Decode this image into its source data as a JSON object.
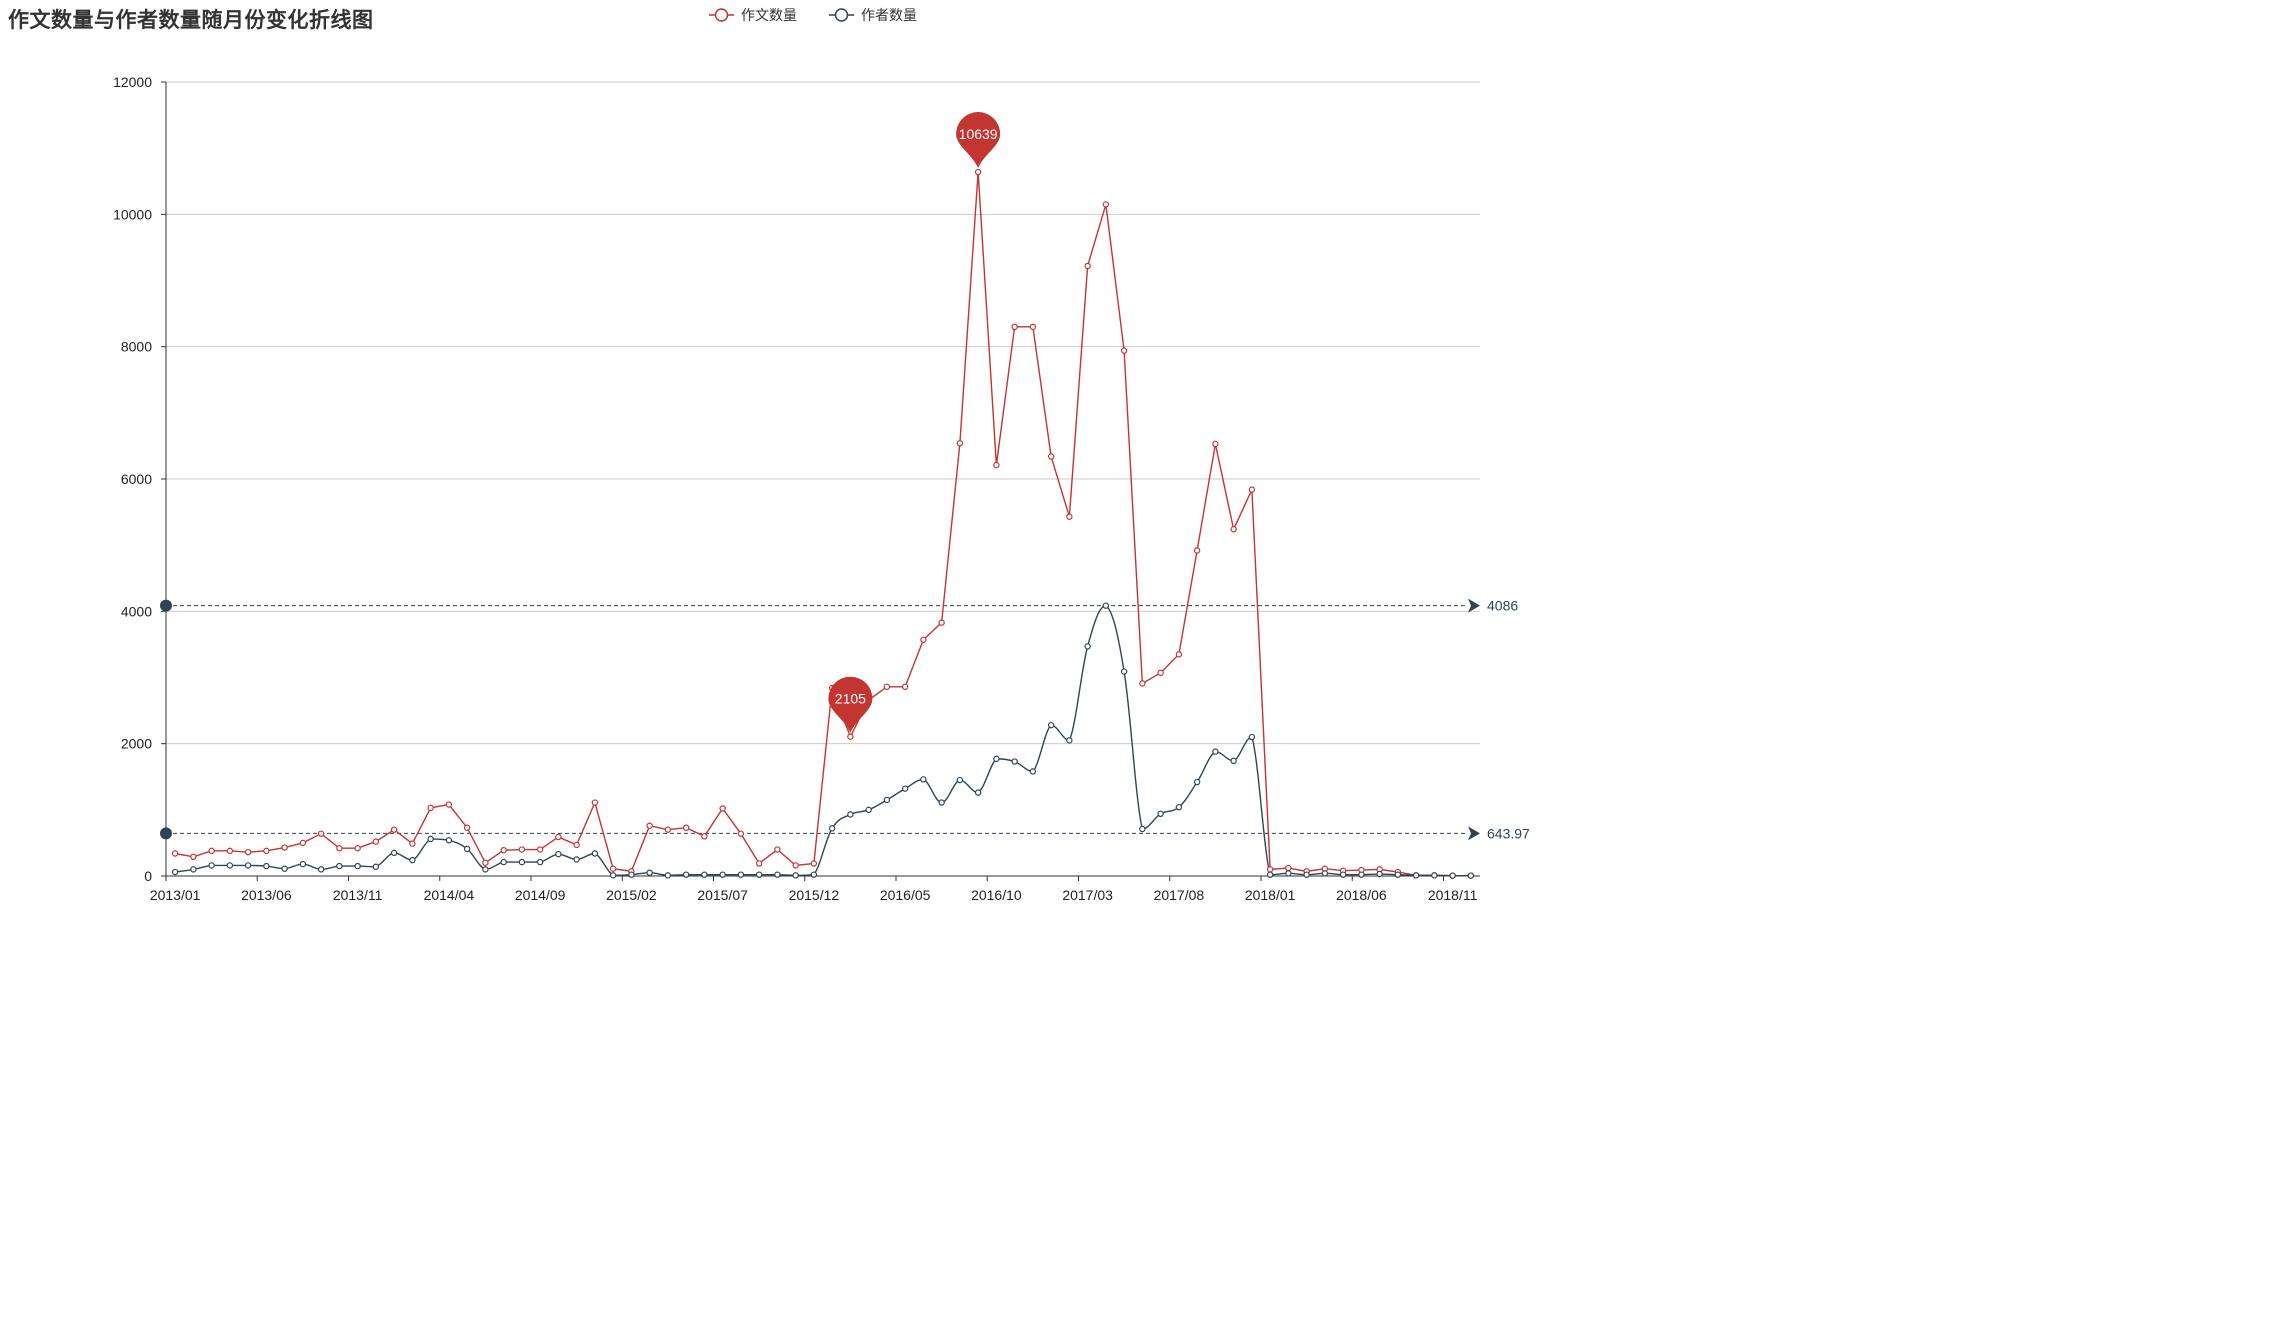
{
  "chart_data": {
    "type": "line",
    "title": "作文数量与作者数量随月份变化折线图",
    "ylim": [
      0,
      12000
    ],
    "y_ticks": [
      0,
      2000,
      4000,
      6000,
      8000,
      10000,
      12000
    ],
    "x_tick_labels": [
      "2013/01",
      "2013/06",
      "2013/11",
      "2014/04",
      "2014/09",
      "2015/02",
      "2015/07",
      "2015/12",
      "2016/05",
      "2016/10",
      "2017/03",
      "2017/08",
      "2018/01",
      "2018/06",
      "2018/11"
    ],
    "x": [
      "2013/01",
      "2013/02",
      "2013/03",
      "2013/04",
      "2013/05",
      "2013/06",
      "2013/07",
      "2013/08",
      "2013/09",
      "2013/10",
      "2013/11",
      "2013/12",
      "2014/01",
      "2014/02",
      "2014/03",
      "2014/04",
      "2014/05",
      "2014/06",
      "2014/07",
      "2014/08",
      "2014/09",
      "2014/10",
      "2014/11",
      "2014/12",
      "2015/01",
      "2015/02",
      "2015/03",
      "2015/04",
      "2015/05",
      "2015/06",
      "2015/07",
      "2015/08",
      "2015/09",
      "2015/10",
      "2015/11",
      "2015/12",
      "2016/01",
      "2016/02",
      "2016/03",
      "2016/04",
      "2016/05",
      "2016/06",
      "2016/07",
      "2016/08",
      "2016/09",
      "2016/10",
      "2016/11",
      "2016/12",
      "2017/01",
      "2017/02",
      "2017/03",
      "2017/04",
      "2017/05",
      "2017/06",
      "2017/07",
      "2017/08",
      "2017/09",
      "2017/10",
      "2017/11",
      "2017/12",
      "2018/01",
      "2018/02",
      "2018/03",
      "2018/04",
      "2018/05",
      "2018/06",
      "2018/07",
      "2018/08",
      "2018/09",
      "2018/10",
      "2018/11",
      "2018/12"
    ],
    "grid": true,
    "legend_position": "top",
    "series": [
      {
        "name": "作文数量",
        "color": "#c23531",
        "smooth": false,
        "values": [
          340,
          290,
          380,
          380,
          360,
          380,
          430,
          500,
          640,
          420,
          420,
          520,
          700,
          490,
          1030,
          1080,
          730,
          200,
          390,
          400,
          400,
          590,
          470,
          1110,
          110,
          70,
          760,
          700,
          730,
          600,
          1020,
          640,
          190,
          400,
          160,
          190,
          2840,
          2105,
          2660,
          2860,
          2860,
          3570,
          3830,
          6540,
          10639,
          6210,
          8300,
          8300,
          6340,
          5430,
          9220,
          10150,
          7940,
          2910,
          3070,
          3350,
          4920,
          6530,
          5240,
          5840,
          100,
          120,
          70,
          110,
          80,
          90,
          100,
          60,
          10,
          10,
          5,
          5
        ],
        "markPoints": [
          {
            "label": "2105",
            "index": 37
          },
          {
            "label": "10639",
            "index": 44
          }
        ]
      },
      {
        "name": "作者数量",
        "color": "#2f4554",
        "smooth": true,
        "values": [
          60,
          100,
          160,
          160,
          160,
          150,
          110,
          180,
          100,
          150,
          150,
          140,
          350,
          240,
          560,
          540,
          410,
          100,
          210,
          210,
          210,
          330,
          250,
          340,
          10,
          20,
          50,
          10,
          20,
          20,
          20,
          20,
          20,
          20,
          10,
          20,
          720,
          930,
          1000,
          1150,
          1320,
          1460,
          1110,
          1450,
          1260,
          1770,
          1730,
          1580,
          2280,
          2050,
          3470,
          4086,
          3090,
          710,
          940,
          1040,
          1420,
          1880,
          1740,
          2100,
          20,
          40,
          20,
          40,
          20,
          20,
          30,
          20,
          10,
          10,
          5,
          5
        ],
        "markLines": [
          {
            "label": "4086",
            "value": 4086
          },
          {
            "label": "643.97",
            "value": 643.97
          }
        ]
      }
    ]
  }
}
